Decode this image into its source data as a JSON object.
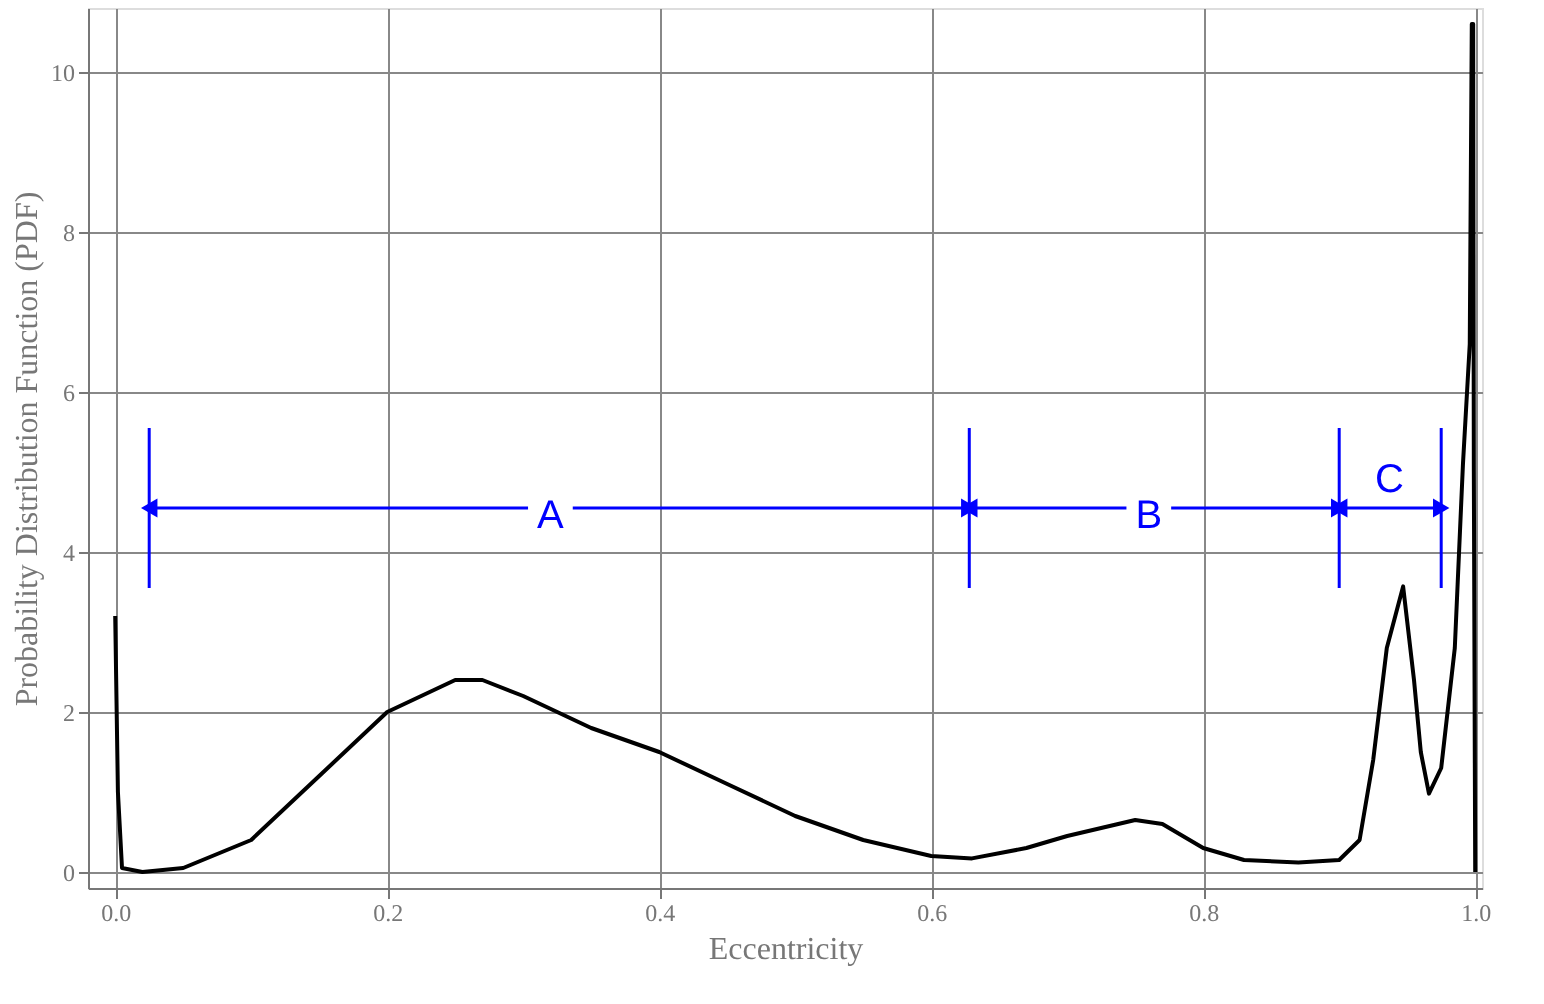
{
  "chart_data": {
    "type": "line",
    "xlabel": "Eccentricity",
    "ylabel": "Probability Distribution Function (PDF)",
    "x": [
      0,
      0.002,
      0.005,
      0.02,
      0.05,
      0.1,
      0.15,
      0.2,
      0.25,
      0.27,
      0.3,
      0.35,
      0.4,
      0.45,
      0.5,
      0.55,
      0.6,
      0.63,
      0.67,
      0.7,
      0.75,
      0.77,
      0.8,
      0.83,
      0.87,
      0.9,
      0.915,
      0.925,
      0.935,
      0.947,
      0.955,
      0.96,
      0.966,
      0.975,
      0.985,
      0.991,
      0.996,
      0.9975,
      0.9985,
      0.999,
      1.0
    ],
    "series": [
      {
        "color": "#000000",
        "values": [
          3.2,
          1.0,
          0.05,
          0.0,
          0.05,
          0.4,
          1.2,
          2.0,
          2.4,
          2.4,
          2.2,
          1.8,
          1.5,
          1.1,
          0.7,
          0.4,
          0.2,
          0.17,
          0.3,
          0.45,
          0.65,
          0.6,
          0.3,
          0.15,
          0.12,
          0.15,
          0.4,
          1.4,
          2.8,
          3.57,
          2.4,
          1.5,
          0.98,
          1.3,
          2.8,
          5.1,
          6.6,
          10.6,
          10.6,
          5.0,
          0.0
        ]
      }
    ],
    "xlim": [
      -0.02,
      1.005
    ],
    "ylim": [
      -0.2,
      10.8
    ],
    "xticks": [
      {
        "value": 0,
        "label": "0.0"
      },
      0.2,
      0.4,
      0.6,
      0.8,
      {
        "value": 1,
        "label": "1.0"
      }
    ],
    "yticks": [
      0,
      2,
      4,
      6,
      8,
      10
    ],
    "grid": true,
    "marker": "none",
    "line_style": "solid",
    "ref_lines": [
      {
        "axis": "x",
        "value": 0.025,
        "color": "#0000ff"
      },
      {
        "axis": "x",
        "value": 0.628,
        "color": "#0000ff"
      },
      {
        "axis": "x",
        "value": 0.9,
        "color": "#0000ff"
      },
      {
        "axis": "x",
        "value": 0.975,
        "color": "#0000ff"
      }
    ],
    "annotations": [
      {
        "text": "A",
        "x": 0.32,
        "y": 4.45
      },
      {
        "text": "B",
        "x": 0.76,
        "y": 4.45
      },
      {
        "text": "C",
        "x": 0.937,
        "y": 4.9
      }
    ]
  }
}
